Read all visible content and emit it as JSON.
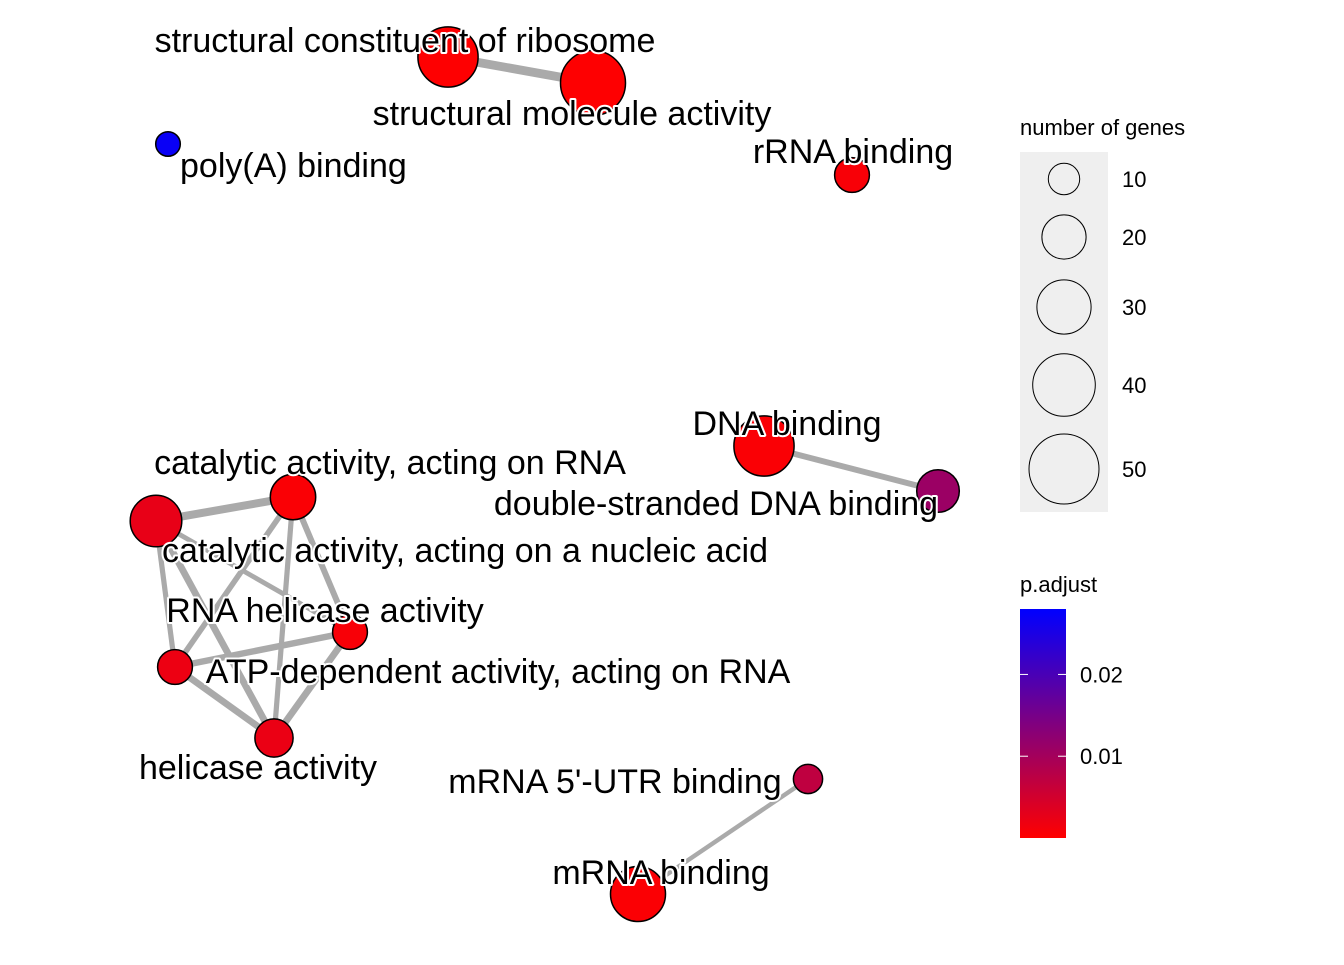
{
  "chart_data": {
    "type": "network",
    "title": "",
    "nodes": [
      {
        "id": "scr",
        "label": "structural constituent of ribosome",
        "genes": 30,
        "p_adjust": 0.0001
      },
      {
        "id": "sma",
        "label": "structural molecule activity",
        "genes": 35,
        "p_adjust": 0.0001
      },
      {
        "id": "polya",
        "label": "poly(A) binding",
        "genes": 5,
        "p_adjust": 0.027
      },
      {
        "id": "rrna",
        "label": "rRNA binding",
        "genes": 10,
        "p_adjust": 0.0008
      },
      {
        "id": "dna",
        "label": "DNA binding",
        "genes": 30,
        "p_adjust": 0.0005
      },
      {
        "id": "dsdna",
        "label": "double-stranded DNA binding",
        "genes": 15,
        "p_adjust": 0.011
      },
      {
        "id": "carna",
        "label": "catalytic activity, acting on RNA",
        "genes": 17,
        "p_adjust": 0.0005
      },
      {
        "id": "cana",
        "label": "catalytic activity, acting on a nucleic acid",
        "genes": 22,
        "p_adjust": 0.0025
      },
      {
        "id": "rnah",
        "label": "RNA helicase activity",
        "genes": 10,
        "p_adjust": 0.0008
      },
      {
        "id": "atp",
        "label": "ATP-dependent activity, acting on RNA",
        "genes": 10,
        "p_adjust": 0.002
      },
      {
        "id": "heli",
        "label": "helicase activity",
        "genes": 12,
        "p_adjust": 0.0022
      },
      {
        "id": "utr",
        "label": "mRNA 5'-UTR binding",
        "genes": 7,
        "p_adjust": 0.007
      },
      {
        "id": "mrna",
        "label": "mRNA binding",
        "genes": 25,
        "p_adjust": 0.0004
      }
    ],
    "edges": [
      {
        "source": "scr",
        "target": "sma",
        "weight": 0.85
      },
      {
        "source": "dna",
        "target": "dsdna",
        "weight": 0.5
      },
      {
        "source": "utr",
        "target": "mrna",
        "weight": 0.3
      },
      {
        "source": "carna",
        "target": "cana",
        "weight": 0.75
      },
      {
        "source": "carna",
        "target": "rnah",
        "weight": 0.5
      },
      {
        "source": "carna",
        "target": "atp",
        "weight": 0.45
      },
      {
        "source": "carna",
        "target": "heli",
        "weight": 0.4
      },
      {
        "source": "cana",
        "target": "rnah",
        "weight": 0.35
      },
      {
        "source": "cana",
        "target": "atp",
        "weight": 0.4
      },
      {
        "source": "cana",
        "target": "heli",
        "weight": 0.6
      },
      {
        "source": "rnah",
        "target": "atp",
        "weight": 0.55
      },
      {
        "source": "rnah",
        "target": "heli",
        "weight": 0.6
      },
      {
        "source": "atp",
        "target": "heli",
        "weight": 0.6
      }
    ],
    "legend_size": {
      "title": "number of genes",
      "values": [
        10,
        20,
        30,
        40,
        50
      ],
      "labels": [
        "10",
        "20",
        "30",
        "40",
        "50"
      ]
    },
    "legend_color": {
      "title": "p.adjust",
      "min": 0,
      "max": 0.028,
      "low_color": "#FF0000",
      "high_color": "#0000FF",
      "tick_values": [
        0.01,
        0.02
      ],
      "tick_labels": [
        "0.01",
        "0.02"
      ]
    },
    "edge_color": "#AAAAAA",
    "node_stroke_color": "#000000"
  }
}
